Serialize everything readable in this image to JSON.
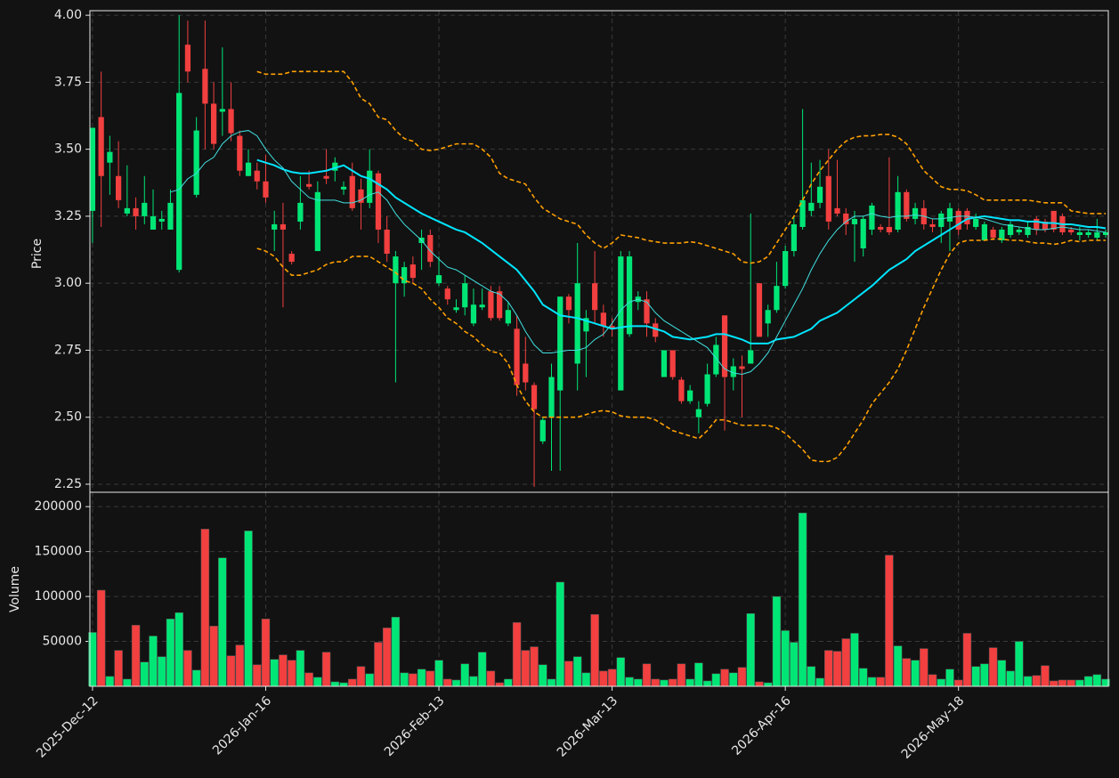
{
  "chart_data": {
    "type": "candlestick",
    "ylabel": "Price",
    "volume_label": "Volume",
    "up_color": "#00e676",
    "down_color": "#f23f3f",
    "grid": true,
    "ylim": [
      2.22,
      4.017
    ],
    "yticks": [
      2.25,
      {
        "value": 2.5,
        "label": "2.50"
      },
      2.75,
      {
        "value": 3,
        "label": "3.00"
      },
      3.25,
      {
        "value": 3.5,
        "label": "3.50"
      },
      3.75,
      {
        "value": 4,
        "label": "4.00"
      }
    ],
    "volume_ylim": [
      0,
      216000
    ],
    "volume_yticks": [
      50000,
      100000,
      150000,
      200000
    ],
    "categories": [
      "2025-Dec-12",
      null,
      null,
      null,
      null,
      null,
      null,
      null,
      null,
      null,
      null,
      null,
      null,
      null,
      null,
      null,
      null,
      null,
      null,
      null,
      "2026-Jan-16",
      null,
      null,
      null,
      null,
      null,
      null,
      null,
      null,
      null,
      null,
      null,
      null,
      null,
      null,
      null,
      null,
      null,
      null,
      null,
      "2026-Feb-13",
      null,
      null,
      null,
      null,
      null,
      null,
      null,
      null,
      null,
      null,
      null,
      null,
      null,
      null,
      null,
      null,
      null,
      null,
      null,
      "2026-Mar-13",
      null,
      null,
      null,
      null,
      null,
      null,
      null,
      null,
      null,
      null,
      null,
      null,
      null,
      null,
      null,
      null,
      null,
      null,
      null,
      "2026-Apr-16",
      null,
      null,
      null,
      null,
      null,
      null,
      null,
      null,
      null,
      null,
      null,
      null,
      null,
      null,
      null,
      null,
      null,
      null,
      null,
      "2026-May-18",
      null,
      null,
      null,
      null,
      null,
      null,
      null,
      null,
      null,
      null,
      null,
      null,
      null,
      null,
      null,
      null,
      null
    ],
    "open": [
      3.27,
      3.62,
      3.45,
      3.4,
      3.26,
      3.28,
      3.25,
      3.2,
      3.23,
      3.2,
      3.05,
      3.89,
      3.33,
      3.8,
      3.67,
      3.64,
      3.65,
      3.55,
      3.4,
      3.42,
      3.38,
      3.2,
      3.22,
      3.11,
      3.23,
      3.37,
      3.12,
      3.4,
      3.42,
      3.35,
      3.4,
      3.35,
      3.3,
      3.41,
      3.2,
      3.0,
      3.0,
      3.07,
      3.15,
      3.18,
      3.0,
      2.98,
      2.9,
      2.91,
      2.85,
      2.91,
      2.97,
      2.97,
      2.85,
      2.83,
      2.7,
      2.62,
      2.41,
      2.5,
      2.6,
      2.95,
      2.7,
      2.82,
      3.0,
      2.89,
      2.84,
      2.6,
      2.81,
      2.93,
      2.94,
      2.85,
      2.65,
      2.75,
      2.64,
      2.56,
      2.5,
      2.55,
      2.66,
      2.88,
      2.65,
      2.69,
      2.7,
      3.0,
      2.85,
      2.9,
      2.99,
      3.12,
      3.21,
      3.27,
      3.3,
      3.4,
      3.28,
      3.26,
      3.22,
      3.13,
      3.2,
      3.21,
      3.21,
      3.2,
      3.34,
      3.24,
      3.28,
      3.22,
      3.21,
      3.23,
      3.27,
      3.27,
      3.21,
      3.16,
      3.2,
      3.16,
      3.18,
      3.19,
      3.18,
      3.24,
      3.23,
      3.27,
      3.25,
      3.2,
      3.18,
      3.18,
      3.17,
      3.18
    ],
    "high": [
      3.58,
      3.79,
      3.55,
      3.53,
      3.44,
      3.32,
      3.4,
      3.35,
      3.27,
      3.35,
      4.0,
      3.98,
      3.62,
      3.98,
      3.75,
      3.88,
      3.75,
      3.57,
      3.5,
      3.45,
      3.48,
      3.27,
      3.3,
      3.12,
      3.4,
      3.42,
      3.38,
      3.5,
      3.47,
      3.38,
      3.45,
      3.39,
      3.5,
      3.42,
      3.25,
      3.12,
      3.08,
      3.1,
      3.2,
      3.2,
      3.1,
      2.99,
      2.94,
      3.03,
      2.98,
      2.98,
      2.99,
      2.99,
      2.93,
      2.88,
      2.8,
      2.63,
      2.5,
      2.7,
      2.95,
      2.96,
      3.15,
      2.9,
      3.12,
      2.92,
      2.87,
      3.12,
      3.12,
      2.97,
      2.97,
      2.87,
      2.75,
      2.75,
      2.65,
      2.62,
      2.56,
      2.7,
      2.8,
      2.88,
      2.72,
      2.73,
      3.26,
      3.0,
      2.92,
      3.08,
      3.14,
      3.25,
      3.65,
      3.45,
      3.46,
      3.5,
      3.46,
      3.28,
      3.27,
      3.25,
      3.3,
      3.22,
      3.47,
      3.4,
      3.35,
      3.3,
      3.31,
      3.24,
      3.27,
      3.3,
      3.28,
      3.28,
      3.26,
      3.23,
      3.21,
      3.21,
      3.23,
      3.21,
      3.23,
      3.25,
      3.24,
      3.27,
      3.26,
      3.21,
      3.21,
      3.2,
      3.24,
      3.2
    ],
    "low": [
      3.15,
      3.21,
      3.33,
      3.28,
      3.25,
      3.2,
      3.22,
      3.2,
      3.2,
      3.2,
      3.04,
      3.75,
      3.32,
      3.5,
      3.5,
      3.55,
      3.53,
      3.4,
      3.4,
      3.35,
      3.3,
      3.12,
      2.91,
      3.07,
      3.2,
      3.35,
      3.12,
      3.37,
      3.38,
      3.33,
      3.27,
      3.2,
      3.28,
      3.15,
      3.08,
      2.63,
      2.95,
      3.0,
      3.05,
      3.06,
      2.99,
      2.92,
      2.89,
      2.88,
      2.84,
      2.9,
      2.86,
      2.86,
      2.84,
      2.58,
      2.6,
      2.24,
      2.4,
      2.3,
      2.3,
      2.85,
      2.6,
      2.65,
      2.85,
      2.8,
      2.8,
      2.6,
      2.8,
      2.9,
      2.8,
      2.78,
      2.65,
      2.64,
      2.55,
      2.55,
      2.44,
      2.54,
      2.65,
      2.45,
      2.6,
      2.5,
      2.7,
      2.8,
      2.8,
      2.89,
      2.98,
      3.1,
      3.2,
      3.25,
      3.28,
      3.2,
      3.25,
      3.18,
      3.08,
      3.1,
      3.18,
      3.19,
      3.18,
      3.19,
      3.23,
      3.22,
      3.2,
      3.19,
      3.15,
      3.12,
      3.18,
      3.2,
      3.2,
      3.16,
      3.16,
      3.15,
      3.17,
      3.18,
      3.17,
      3.18,
      3.19,
      3.19,
      3.18,
      3.18,
      3.16,
      3.17,
      3.16,
      3.17
    ],
    "close": [
      3.58,
      3.4,
      3.49,
      3.31,
      3.28,
      3.25,
      3.3,
      3.25,
      3.24,
      3.3,
      3.71,
      3.79,
      3.57,
      3.67,
      3.52,
      3.65,
      3.56,
      3.42,
      3.45,
      3.38,
      3.32,
      3.22,
      3.2,
      3.08,
      3.3,
      3.36,
      3.34,
      3.39,
      3.45,
      3.36,
      3.28,
      3.3,
      3.42,
      3.2,
      3.11,
      3.1,
      3.06,
      3.02,
      3.17,
      3.08,
      3.03,
      2.94,
      2.91,
      3.0,
      2.92,
      2.92,
      2.87,
      2.87,
      2.9,
      2.62,
      2.63,
      2.53,
      2.49,
      2.65,
      2.95,
      2.9,
      3.0,
      2.87,
      2.9,
      2.84,
      2.83,
      3.1,
      3.1,
      2.95,
      2.85,
      2.8,
      2.75,
      2.65,
      2.56,
      2.6,
      2.53,
      2.66,
      2.77,
      2.65,
      2.69,
      2.68,
      2.75,
      2.8,
      2.9,
      2.99,
      3.12,
      3.22,
      3.31,
      3.3,
      3.36,
      3.23,
      3.26,
      3.22,
      3.24,
      3.24,
      3.29,
      3.2,
      3.19,
      3.34,
      3.24,
      3.28,
      3.22,
      3.21,
      3.26,
      3.28,
      3.2,
      3.22,
      3.24,
      3.22,
      3.17,
      3.2,
      3.22,
      3.2,
      3.21,
      3.2,
      3.2,
      3.2,
      3.19,
      3.19,
      3.19,
      3.19,
      3.19,
      3.19
    ],
    "volume": [
      60000,
      107000,
      11000,
      40000,
      8000,
      68000,
      27000,
      56000,
      33000,
      75000,
      82000,
      40000,
      18000,
      175000,
      67000,
      143000,
      34000,
      46000,
      173000,
      24000,
      75000,
      30000,
      35000,
      29000,
      40000,
      15000,
      10000,
      38000,
      5000,
      4000,
      8000,
      22000,
      14000,
      49000,
      65000,
      77000,
      15000,
      14000,
      19000,
      17000,
      29000,
      8000,
      7000,
      25000,
      11000,
      38000,
      17000,
      4000,
      8000,
      71000,
      40000,
      44000,
      24000,
      8000,
      116000,
      28000,
      33000,
      15000,
      80000,
      17000,
      19000,
      32000,
      10000,
      8000,
      25000,
      8000,
      7000,
      8000,
      25000,
      8000,
      26000,
      6000,
      14000,
      19000,
      15000,
      21000,
      81000,
      5000,
      4000,
      100000,
      62000,
      49000,
      193000,
      22000,
      9000,
      40000,
      39000,
      53000,
      59000,
      20000,
      10000,
      10000,
      146000,
      45000,
      31000,
      29000,
      42000,
      13000,
      8000,
      19000,
      7000,
      59000,
      22000,
      25000,
      43000,
      29000,
      17000,
      50000,
      11000,
      12000,
      23000,
      6000,
      7000,
      7000,
      7000,
      11000,
      13000,
      8000
    ],
    "overlays": [
      {
        "color": "#00e5ff",
        "width": 2,
        "dashed": false,
        "values": [
          null,
          null,
          null,
          null,
          null,
          null,
          null,
          null,
          null,
          null,
          null,
          null,
          null,
          null,
          null,
          null,
          null,
          null,
          null,
          3.46,
          3.45,
          3.44,
          3.425,
          3.415,
          3.41,
          3.41,
          3.415,
          3.42,
          3.43,
          3.44,
          3.42,
          3.4,
          3.39,
          3.37,
          3.35,
          3.32,
          3.3,
          3.28,
          3.26,
          3.245,
          3.23,
          3.215,
          3.2,
          3.19,
          3.17,
          3.15,
          3.125,
          3.1,
          3.075,
          3.05,
          3.01,
          2.97,
          2.92,
          2.9,
          2.88,
          2.875,
          2.87,
          2.86,
          2.85,
          2.84,
          2.83,
          2.835,
          2.84,
          2.84,
          2.84,
          2.83,
          2.82,
          2.8,
          2.795,
          2.79,
          2.795,
          2.8,
          2.81,
          2.81,
          2.8,
          2.79,
          2.775,
          2.775,
          2.775,
          2.79,
          2.795,
          2.8,
          2.815,
          2.83,
          2.86,
          2.875,
          2.89,
          2.915,
          2.94,
          2.965,
          2.99,
          3.02,
          3.05,
          3.07,
          3.09,
          3.12,
          3.14,
          3.16,
          3.18,
          3.2,
          3.22,
          3.24,
          3.245,
          3.25,
          3.245,
          3.24,
          3.235,
          3.235,
          3.23,
          3.23,
          3.225,
          3.225,
          3.22,
          3.22,
          3.215,
          3.21,
          3.21,
          3.205
        ]
      },
      {
        "color": "#40e0e0",
        "width": 1,
        "dashed": false,
        "values": [
          null,
          null,
          null,
          null,
          null,
          null,
          null,
          null,
          null,
          3.34,
          3.35,
          3.39,
          3.41,
          3.45,
          3.47,
          3.52,
          3.55,
          3.565,
          3.57,
          3.55,
          3.5,
          3.46,
          3.43,
          3.38,
          3.35,
          3.32,
          3.31,
          3.31,
          3.31,
          3.3,
          3.3,
          3.31,
          3.33,
          3.34,
          3.31,
          3.26,
          3.22,
          3.19,
          3.16,
          3.12,
          3.09,
          3.06,
          3.05,
          3.03,
          3.01,
          2.99,
          2.97,
          2.96,
          2.93,
          2.88,
          2.82,
          2.77,
          2.74,
          2.74,
          2.745,
          2.75,
          2.75,
          2.76,
          2.79,
          2.81,
          2.85,
          2.9,
          2.93,
          2.94,
          2.93,
          2.89,
          2.86,
          2.84,
          2.82,
          2.8,
          2.78,
          2.76,
          2.72,
          2.68,
          2.665,
          2.66,
          2.67,
          2.7,
          2.74,
          2.8,
          2.86,
          2.92,
          2.98,
          3.05,
          3.11,
          3.16,
          3.2,
          3.23,
          3.25,
          3.25,
          3.26,
          3.25,
          3.245,
          3.25,
          3.25,
          3.255,
          3.25,
          3.24,
          3.24,
          3.245,
          3.25,
          3.25,
          3.245,
          3.24,
          3.23,
          3.22,
          3.215,
          3.21,
          3.205,
          3.2,
          3.2,
          3.205,
          3.21,
          3.205,
          3.2,
          3.2,
          3.195,
          3.19
        ]
      },
      {
        "color": "#ffa000",
        "width": 1.6,
        "dashed": true,
        "values": [
          null,
          null,
          null,
          null,
          null,
          null,
          null,
          null,
          null,
          null,
          null,
          null,
          null,
          null,
          null,
          null,
          null,
          null,
          null,
          3.79,
          3.78,
          3.78,
          3.78,
          3.79,
          3.79,
          3.79,
          3.79,
          3.79,
          3.79,
          3.79,
          3.75,
          3.69,
          3.67,
          3.62,
          3.61,
          3.57,
          3.54,
          3.53,
          3.5,
          3.495,
          3.5,
          3.51,
          3.52,
          3.52,
          3.52,
          3.5,
          3.47,
          3.41,
          3.39,
          3.38,
          3.37,
          3.32,
          3.28,
          3.26,
          3.24,
          3.23,
          3.22,
          3.18,
          3.15,
          3.13,
          3.15,
          3.18,
          3.175,
          3.17,
          3.16,
          3.155,
          3.15,
          3.15,
          3.15,
          3.155,
          3.15,
          3.14,
          3.13,
          3.12,
          3.11,
          3.08,
          3.075,
          3.08,
          3.1,
          3.15,
          3.2,
          3.25,
          3.31,
          3.37,
          3.42,
          3.46,
          3.5,
          3.53,
          3.545,
          3.55,
          3.55,
          3.555,
          3.555,
          3.545,
          3.52,
          3.47,
          3.42,
          3.39,
          3.36,
          3.35,
          3.35,
          3.345,
          3.33,
          3.31,
          3.31,
          3.31,
          3.31,
          3.31,
          3.31,
          3.305,
          3.3,
          3.3,
          3.3,
          3.27,
          3.265,
          3.26,
          3.26,
          3.26
        ]
      },
      {
        "color": "#ffa000",
        "width": 1.6,
        "dashed": true,
        "values": [
          null,
          null,
          null,
          null,
          null,
          null,
          null,
          null,
          null,
          null,
          null,
          null,
          null,
          null,
          null,
          null,
          null,
          null,
          null,
          3.13,
          3.12,
          3.1,
          3.06,
          3.03,
          3.03,
          3.04,
          3.05,
          3.07,
          3.08,
          3.08,
          3.1,
          3.1,
          3.1,
          3.08,
          3.06,
          3.04,
          3.01,
          3.0,
          2.98,
          2.94,
          2.91,
          2.87,
          2.85,
          2.82,
          2.8,
          2.77,
          2.745,
          2.74,
          2.7,
          2.62,
          2.56,
          2.52,
          2.5,
          2.5,
          2.5,
          2.5,
          2.5,
          2.51,
          2.52,
          2.525,
          2.52,
          2.505,
          2.5,
          2.5,
          2.5,
          2.49,
          2.47,
          2.45,
          2.44,
          2.43,
          2.42,
          2.45,
          2.49,
          2.49,
          2.48,
          2.47,
          2.47,
          2.47,
          2.47,
          2.46,
          2.44,
          2.41,
          2.38,
          2.34,
          2.335,
          2.335,
          2.35,
          2.39,
          2.44,
          2.49,
          2.55,
          2.59,
          2.63,
          2.68,
          2.75,
          2.83,
          2.91,
          2.98,
          3.05,
          3.11,
          3.15,
          3.16,
          3.16,
          3.16,
          3.165,
          3.165,
          3.16,
          3.16,
          3.155,
          3.15,
          3.15,
          3.145,
          3.15,
          3.16,
          3.155,
          3.16,
          3.16,
          3.16
        ]
      }
    ]
  }
}
